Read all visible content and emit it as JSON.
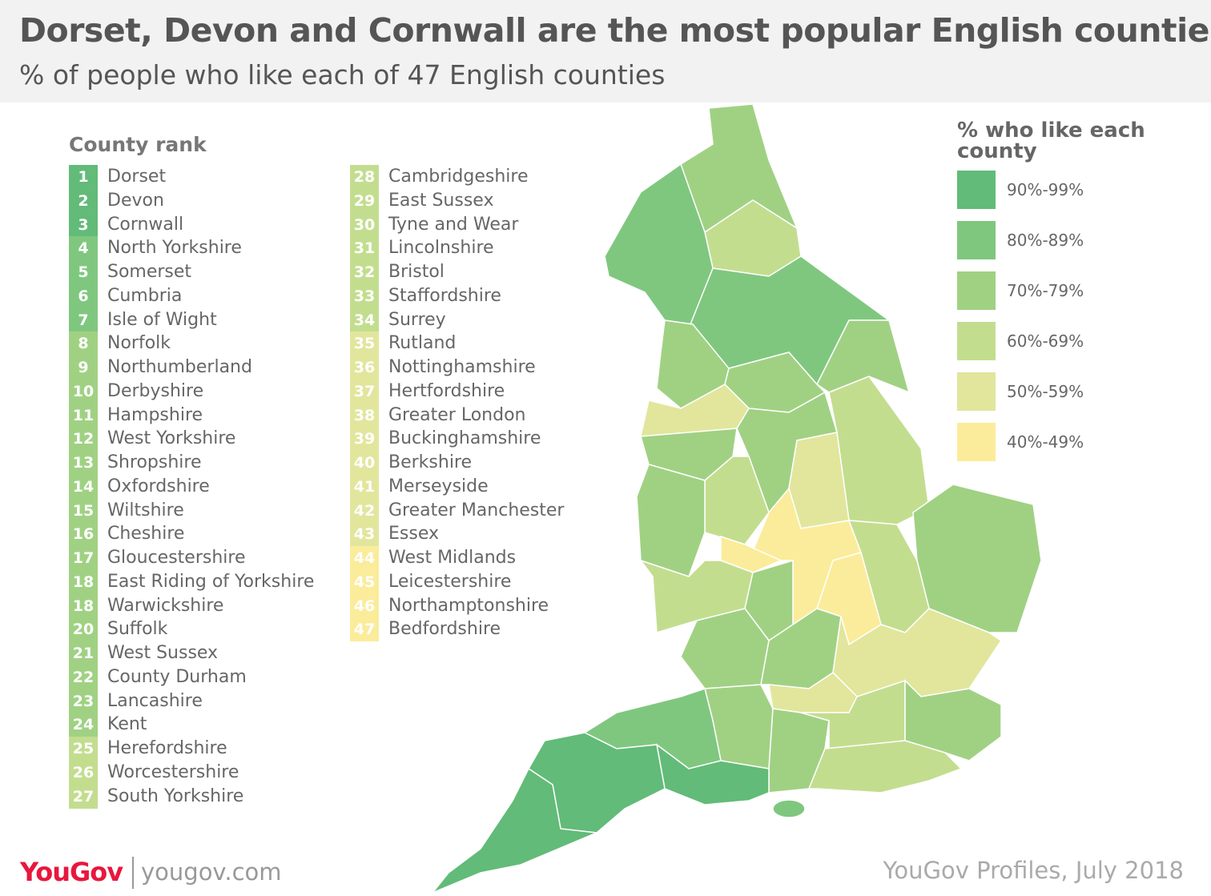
{
  "header": {
    "title": "Dorset, Devon and Cornwall are the most popular English counties",
    "subtitle": "% of people who like each of 47 English counties"
  },
  "rank_list": {
    "title": "County rank",
    "items": [
      {
        "rank": 1,
        "name": "Dorset",
        "color": "#62bb78"
      },
      {
        "rank": 2,
        "name": "Devon",
        "color": "#62bb78"
      },
      {
        "rank": 3,
        "name": "Cornwall",
        "color": "#62bb78"
      },
      {
        "rank": 4,
        "name": "North Yorkshire",
        "color": "#7fc77f"
      },
      {
        "rank": 5,
        "name": "Somerset",
        "color": "#7fc77f"
      },
      {
        "rank": 6,
        "name": "Cumbria",
        "color": "#7fc77f"
      },
      {
        "rank": 7,
        "name": "Isle of Wight",
        "color": "#7fc77f"
      },
      {
        "rank": 8,
        "name": "Norfolk",
        "color": "#a0d183"
      },
      {
        "rank": 9,
        "name": "Northumberland",
        "color": "#a0d183"
      },
      {
        "rank": 10,
        "name": "Derbyshire",
        "color": "#a0d183"
      },
      {
        "rank": 11,
        "name": "Hampshire",
        "color": "#a0d183"
      },
      {
        "rank": 12,
        "name": "West Yorkshire",
        "color": "#a0d183"
      },
      {
        "rank": 13,
        "name": "Shropshire",
        "color": "#a0d183"
      },
      {
        "rank": 14,
        "name": "Oxfordshire",
        "color": "#a0d183"
      },
      {
        "rank": 15,
        "name": "Wiltshire",
        "color": "#a0d183"
      },
      {
        "rank": 16,
        "name": "Cheshire",
        "color": "#a0d183"
      },
      {
        "rank": 17,
        "name": "Gloucestershire",
        "color": "#a0d183"
      },
      {
        "rank": 18,
        "name": "East Riding of Yorkshire",
        "color": "#a0d183"
      },
      {
        "rank": 18,
        "name": "Warwickshire",
        "color": "#a0d183"
      },
      {
        "rank": 20,
        "name": "Suffolk",
        "color": "#a0d183"
      },
      {
        "rank": 21,
        "name": "West Sussex",
        "color": "#a0d183"
      },
      {
        "rank": 22,
        "name": "County Durham",
        "color": "#a0d183"
      },
      {
        "rank": 23,
        "name": "Lancashire",
        "color": "#a0d183"
      },
      {
        "rank": 24,
        "name": "Kent",
        "color": "#a0d183"
      },
      {
        "rank": 25,
        "name": "Herefordshire",
        "color": "#c3dd8f"
      },
      {
        "rank": 26,
        "name": "Worcestershire",
        "color": "#c3dd8f"
      },
      {
        "rank": 27,
        "name": "South Yorkshire",
        "color": "#c3dd8f"
      },
      {
        "rank": 28,
        "name": "Cambridgeshire",
        "color": "#c3dd8f"
      },
      {
        "rank": 29,
        "name": "East Sussex",
        "color": "#c3dd8f"
      },
      {
        "rank": 30,
        "name": "Tyne and Wear",
        "color": "#c3dd8f"
      },
      {
        "rank": 31,
        "name": "Lincolnshire",
        "color": "#c3dd8f"
      },
      {
        "rank": 32,
        "name": "Bristol",
        "color": "#c3dd8f"
      },
      {
        "rank": 33,
        "name": "Staffordshire",
        "color": "#c3dd8f"
      },
      {
        "rank": 34,
        "name": "Surrey",
        "color": "#c3dd8f"
      },
      {
        "rank": 35,
        "name": "Rutland",
        "color": "#e1e69c"
      },
      {
        "rank": 36,
        "name": "Nottinghamshire",
        "color": "#e1e69c"
      },
      {
        "rank": 37,
        "name": "Hertfordshire",
        "color": "#e1e69c"
      },
      {
        "rank": 38,
        "name": "Greater London",
        "color": "#e1e69c"
      },
      {
        "rank": 39,
        "name": "Buckinghamshire",
        "color": "#e1e69c"
      },
      {
        "rank": 40,
        "name": "Berkshire",
        "color": "#e1e69c"
      },
      {
        "rank": 41,
        "name": "Merseyside",
        "color": "#e1e69c"
      },
      {
        "rank": 42,
        "name": "Greater Manchester",
        "color": "#e1e69c"
      },
      {
        "rank": 43,
        "name": "Essex",
        "color": "#e1e69c"
      },
      {
        "rank": 44,
        "name": "West Midlands",
        "color": "#fbec9b"
      },
      {
        "rank": 45,
        "name": "Leicestershire",
        "color": "#fbec9b"
      },
      {
        "rank": 46,
        "name": "Northamptonshire",
        "color": "#fbec9b"
      },
      {
        "rank": 47,
        "name": "Bedfordshire",
        "color": "#fbec9b"
      }
    ]
  },
  "legend": {
    "title": "% who like each county",
    "items": [
      {
        "label": "90%-99%",
        "color": "#62bb78"
      },
      {
        "label": "80%-89%",
        "color": "#7fc77f"
      },
      {
        "label": "70%-79%",
        "color": "#a0d183"
      },
      {
        "label": "60%-69%",
        "color": "#c3dd8f"
      },
      {
        "label": "50%-59%",
        "color": "#e1e69c"
      },
      {
        "label": "40%-49%",
        "color": "#fbec9b"
      }
    ]
  },
  "footer": {
    "logo": "YouGov",
    "site": "yougov.com",
    "source": "YouGov Profiles, July 2018"
  }
}
